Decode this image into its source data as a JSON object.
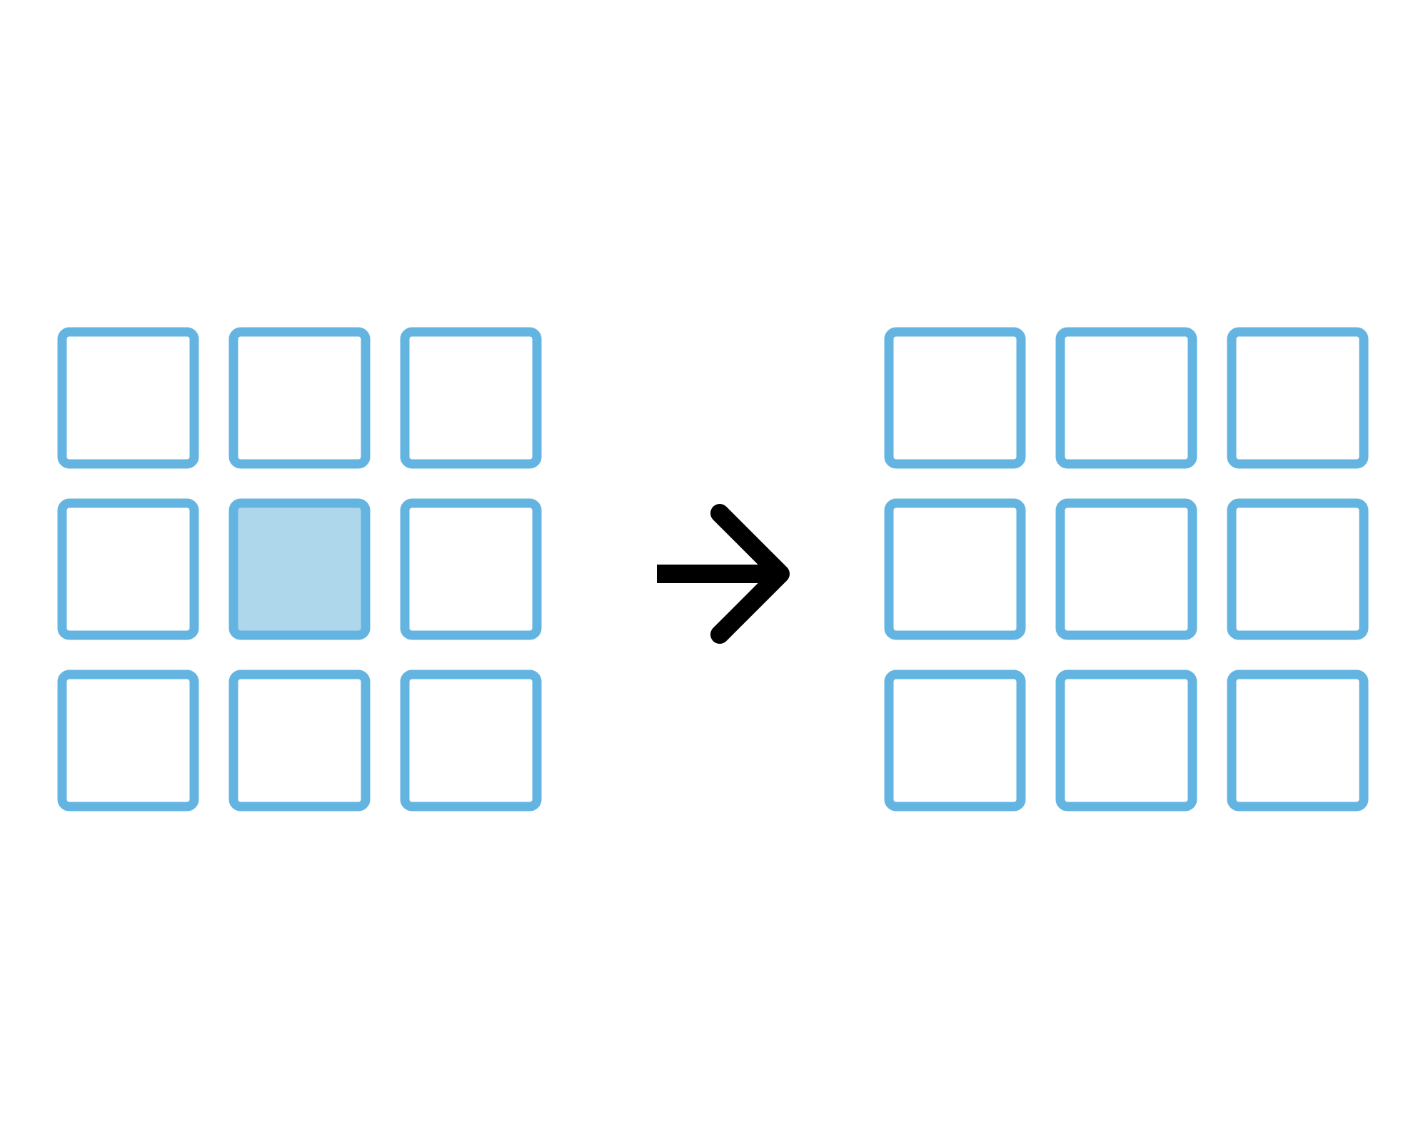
{
  "colors": {
    "background": "#ffffff",
    "cell_stroke": "#64b4e2",
    "cell_empty": "#ffffff",
    "cell_filled": "#afd7ec",
    "arrow": "#000000"
  },
  "grids": [
    {
      "name": "input-grid",
      "rows": 3,
      "cols": 3,
      "filled": [
        [
          0,
          0,
          0
        ],
        [
          0,
          1,
          0
        ],
        [
          0,
          0,
          0
        ]
      ]
    },
    {
      "name": "output-grid",
      "rows": 3,
      "cols": 3,
      "filled": [
        [
          0,
          0,
          0
        ],
        [
          0,
          0,
          0
        ],
        [
          0,
          0,
          0
        ]
      ]
    }
  ],
  "arrow": {
    "icon": "arrow-right-icon",
    "direction": "right"
  }
}
